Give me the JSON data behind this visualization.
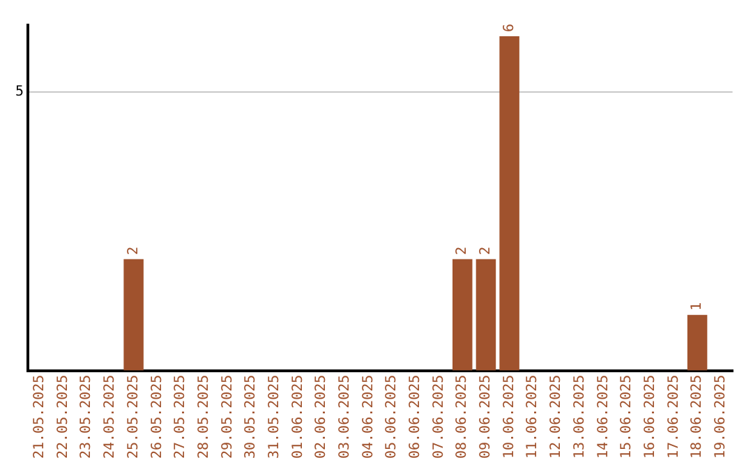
{
  "chart_data": {
    "type": "bar",
    "categories": [
      "21.05.2025",
      "22.05.2025",
      "23.05.2025",
      "24.05.2025",
      "25.05.2025",
      "26.05.2025",
      "27.05.2025",
      "28.05.2025",
      "29.05.2025",
      "30.05.2025",
      "31.05.2025",
      "01.06.2025",
      "02.06.2025",
      "03.06.2025",
      "04.06.2025",
      "05.06.2025",
      "06.06.2025",
      "07.06.2025",
      "08.06.2025",
      "09.06.2025",
      "10.06.2025",
      "11.06.2025",
      "12.06.2025",
      "13.06.2025",
      "14.06.2025",
      "15.06.2025",
      "16.06.2025",
      "17.06.2025",
      "18.06.2025",
      "19.06.2025"
    ],
    "values": [
      0,
      0,
      0,
      0,
      2,
      0,
      0,
      0,
      0,
      0,
      0,
      0,
      0,
      0,
      0,
      0,
      0,
      0,
      2,
      2,
      6,
      0,
      0,
      0,
      0,
      0,
      0,
      0,
      1,
      0
    ],
    "value_labels": [
      null,
      null,
      null,
      null,
      "2",
      null,
      null,
      null,
      null,
      null,
      null,
      null,
      null,
      null,
      null,
      null,
      null,
      null,
      "2",
      "2",
      "6",
      null,
      null,
      null,
      null,
      null,
      null,
      null,
      "1",
      null
    ],
    "color": "#a0522d",
    "ylim": [
      0,
      6.2
    ],
    "yticks": [
      5
    ],
    "grid": "y",
    "legend": false
  }
}
